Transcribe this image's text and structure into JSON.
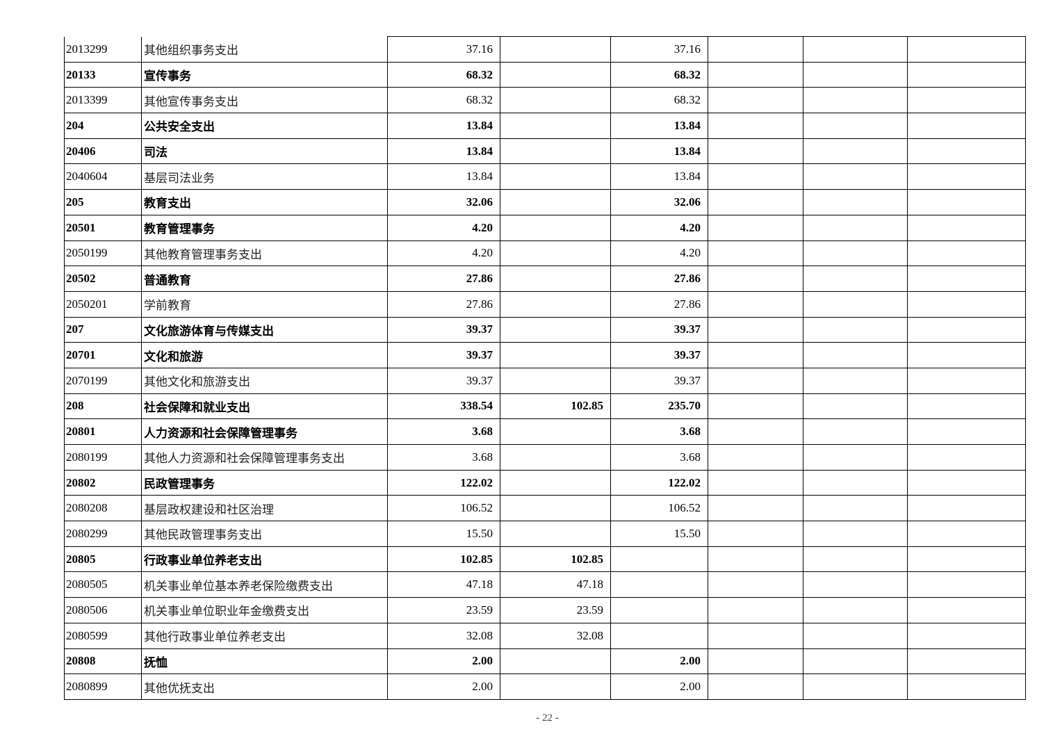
{
  "rows": [
    {
      "code": "2013299",
      "name": "其他组织事务支出",
      "total": "37.16",
      "basic": "",
      "project": "37.16",
      "bold": false
    },
    {
      "code": "20133",
      "name": "宣传事务",
      "total": "68.32",
      "basic": "",
      "project": "68.32",
      "bold": true
    },
    {
      "code": "2013399",
      "name": "其他宣传事务支出",
      "total": "68.32",
      "basic": "",
      "project": "68.32",
      "bold": false
    },
    {
      "code": "204",
      "name": "公共安全支出",
      "total": "13.84",
      "basic": "",
      "project": "13.84",
      "bold": true
    },
    {
      "code": "20406",
      "name": "司法",
      "total": "13.84",
      "basic": "",
      "project": "13.84",
      "bold": true
    },
    {
      "code": "2040604",
      "name": "基层司法业务",
      "total": "13.84",
      "basic": "",
      "project": "13.84",
      "bold": false
    },
    {
      "code": "205",
      "name": "教育支出",
      "total": "32.06",
      "basic": "",
      "project": "32.06",
      "bold": true
    },
    {
      "code": "20501",
      "name": "教育管理事务",
      "total": "4.20",
      "basic": "",
      "project": "4.20",
      "bold": true
    },
    {
      "code": "2050199",
      "name": "其他教育管理事务支出",
      "total": "4.20",
      "basic": "",
      "project": "4.20",
      "bold": false
    },
    {
      "code": "20502",
      "name": "普通教育",
      "total": "27.86",
      "basic": "",
      "project": "27.86",
      "bold": true
    },
    {
      "code": "2050201",
      "name": "学前教育",
      "total": "27.86",
      "basic": "",
      "project": "27.86",
      "bold": false
    },
    {
      "code": "207",
      "name": "文化旅游体育与传媒支出",
      "total": "39.37",
      "basic": "",
      "project": "39.37",
      "bold": true
    },
    {
      "code": "20701",
      "name": "文化和旅游",
      "total": "39.37",
      "basic": "",
      "project": "39.37",
      "bold": true
    },
    {
      "code": "2070199",
      "name": "其他文化和旅游支出",
      "total": "39.37",
      "basic": "",
      "project": "39.37",
      "bold": false
    },
    {
      "code": "208",
      "name": "社会保障和就业支出",
      "total": "338.54",
      "basic": "102.85",
      "project": "235.70",
      "bold": true
    },
    {
      "code": "20801",
      "name": "人力资源和社会保障管理事务",
      "total": "3.68",
      "basic": "",
      "project": "3.68",
      "bold": true
    },
    {
      "code": "2080199",
      "name": "其他人力资源和社会保障管理事务支出",
      "total": "3.68",
      "basic": "",
      "project": "3.68",
      "bold": false
    },
    {
      "code": "20802",
      "name": "民政管理事务",
      "total": "122.02",
      "basic": "",
      "project": "122.02",
      "bold": true
    },
    {
      "code": "2080208",
      "name": "基层政权建设和社区治理",
      "total": "106.52",
      "basic": "",
      "project": "106.52",
      "bold": false
    },
    {
      "code": "2080299",
      "name": "其他民政管理事务支出",
      "total": "15.50",
      "basic": "",
      "project": "15.50",
      "bold": false
    },
    {
      "code": "20805",
      "name": "行政事业单位养老支出",
      "total": "102.85",
      "basic": "102.85",
      "project": "",
      "bold": true
    },
    {
      "code": "2080505",
      "name": "机关事业单位基本养老保险缴费支出",
      "total": "47.18",
      "basic": "47.18",
      "project": "",
      "bold": false
    },
    {
      "code": "2080506",
      "name": "机关事业单位职业年金缴费支出",
      "total": "23.59",
      "basic": "23.59",
      "project": "",
      "bold": false
    },
    {
      "code": "2080599",
      "name": "其他行政事业单位养老支出",
      "total": "32.08",
      "basic": "32.08",
      "project": "",
      "bold": false
    },
    {
      "code": "20808",
      "name": "抚恤",
      "total": "2.00",
      "basic": "",
      "project": "2.00",
      "bold": true
    },
    {
      "code": "2080899",
      "name": "其他优抚支出",
      "total": "2.00",
      "basic": "",
      "project": "2.00",
      "bold": false
    }
  ],
  "footer": {
    "page_number": "- 22 -"
  }
}
